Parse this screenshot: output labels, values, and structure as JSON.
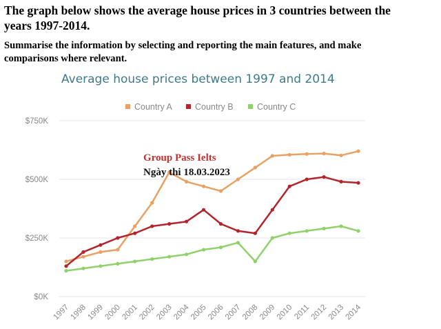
{
  "prompt": {
    "line1": "The graph below shows the average house prices in 3 countries between the",
    "line2": "years 1997-2014.",
    "line3": "Summarise the information by selecting and reporting the main features, and make",
    "line4": "comparisons where relevant."
  },
  "watermark": {
    "line1": "Group Pass Ielts",
    "line2": "Ngày thi 18.03.2023"
  },
  "chart_data": {
    "type": "line",
    "title": "Average house prices between 1997 and 2014",
    "xlabel": "",
    "ylabel": "",
    "legend_position": "top",
    "grid": true,
    "ylim": [
      0,
      750000
    ],
    "y_ticks": [
      0,
      250000,
      500000,
      750000
    ],
    "y_tick_labels": [
      "$0K",
      "$250K",
      "$500K",
      "$750K"
    ],
    "x": [
      "1997",
      "1998",
      "1999",
      "2000",
      "2001",
      "2002",
      "2003",
      "2004",
      "2005",
      "2006",
      "2007",
      "2008",
      "2009",
      "2010",
      "2011",
      "2012",
      "2013",
      "2014"
    ],
    "series": [
      {
        "name": "Country A",
        "color": "#e8a063",
        "values": [
          150000,
          170000,
          190000,
          200000,
          300000,
          400000,
          530000,
          490000,
          470000,
          450000,
          500000,
          550000,
          600000,
          605000,
          608000,
          610000,
          602000,
          620000
        ]
      },
      {
        "name": "Country B",
        "color": "#b3242b",
        "values": [
          130000,
          190000,
          220000,
          250000,
          270000,
          300000,
          310000,
          320000,
          370000,
          310000,
          280000,
          270000,
          370000,
          470000,
          500000,
          510000,
          490000,
          485000
        ]
      },
      {
        "name": "Country C",
        "color": "#8fd16b",
        "values": [
          110000,
          120000,
          130000,
          140000,
          150000,
          160000,
          170000,
          180000,
          200000,
          210000,
          230000,
          150000,
          250000,
          270000,
          280000,
          290000,
          300000,
          280000
        ]
      }
    ]
  }
}
